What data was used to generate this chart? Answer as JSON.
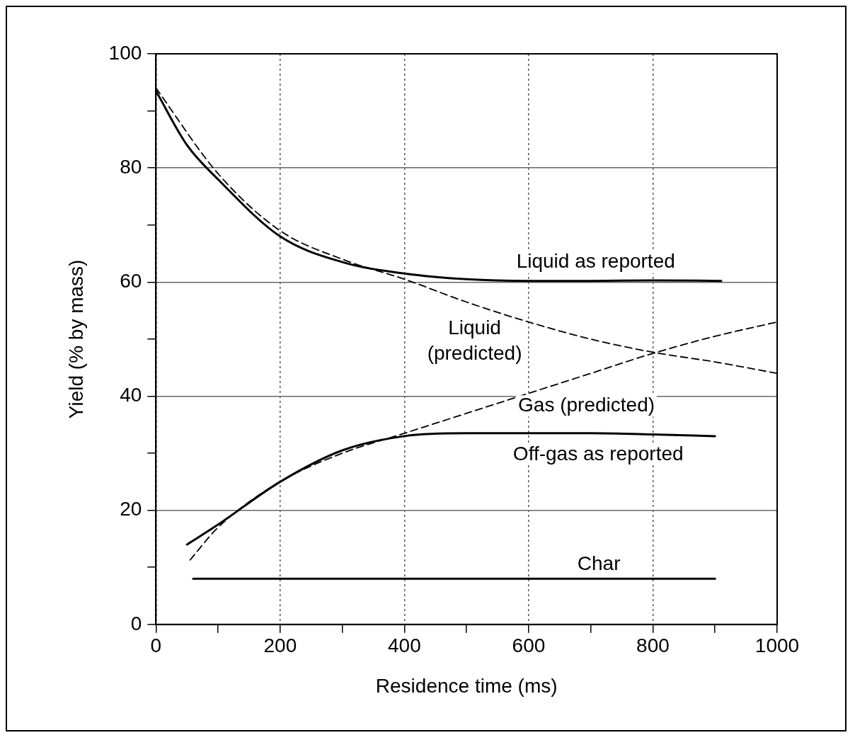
{
  "chart_data": {
    "type": "line",
    "xlabel": "Residence time (ms)",
    "ylabel": "Yield (% by mass)",
    "xlim": [
      0,
      1000
    ],
    "ylim": [
      0,
      100
    ],
    "xticks": [
      0,
      {
        "value": 100,
        "label": null
      },
      200,
      {
        "value": 300,
        "label": null
      },
      400,
      {
        "value": 500,
        "label": null
      },
      600,
      {
        "value": 700,
        "label": null
      },
      800,
      {
        "value": 900,
        "label": null
      },
      1000
    ],
    "yticks": [
      0,
      {
        "value": 10,
        "label": null
      },
      20,
      {
        "value": 30,
        "label": null
      },
      40,
      {
        "value": 50,
        "label": null
      },
      60,
      {
        "value": 70,
        "label": null
      },
      80,
      {
        "value": 90,
        "label": null
      },
      100
    ],
    "grid": true,
    "legend": false,
    "marker": "none",
    "series": [
      {
        "name": "Liquid as reported",
        "color": "#000000",
        "line_style": "solid",
        "x": [
          0,
          50,
          100,
          200,
          300,
          400,
          500,
          600,
          700,
          800,
          910
        ],
        "values": [
          93.5,
          84,
          78,
          68,
          63.5,
          61.5,
          60.5,
          60.2,
          60.2,
          60.3,
          60.2
        ]
      },
      {
        "name": "Liquid (predicted)",
        "color": "#000000",
        "line_style": "dashed",
        "x": [
          0,
          100,
          200,
          300,
          400,
          500,
          600,
          700,
          800,
          900,
          1000
        ],
        "values": [
          94,
          79,
          69,
          64,
          60.5,
          56.5,
          53,
          50,
          47.7,
          46,
          44
        ]
      },
      {
        "name": "Gas (predicted)",
        "color": "#000000",
        "line_style": "dashed",
        "x": [
          55,
          100,
          200,
          300,
          400,
          500,
          600,
          700,
          800,
          900,
          1000
        ],
        "values": [
          11.3,
          17,
          25,
          30,
          33.5,
          37,
          40.5,
          44,
          47.5,
          50.5,
          53
        ]
      },
      {
        "name": "Off-gas as reported",
        "color": "#000000",
        "line_style": "solid",
        "x": [
          50,
          100,
          200,
          300,
          400,
          500,
          600,
          700,
          800,
          900
        ],
        "values": [
          14,
          17.5,
          25,
          30.5,
          33,
          33.5,
          33.5,
          33.5,
          33.3,
          33
        ]
      },
      {
        "name": "Char",
        "color": "#000000",
        "line_style": "solid",
        "x": [
          60,
          900
        ],
        "values": [
          8,
          8
        ]
      }
    ]
  }
}
